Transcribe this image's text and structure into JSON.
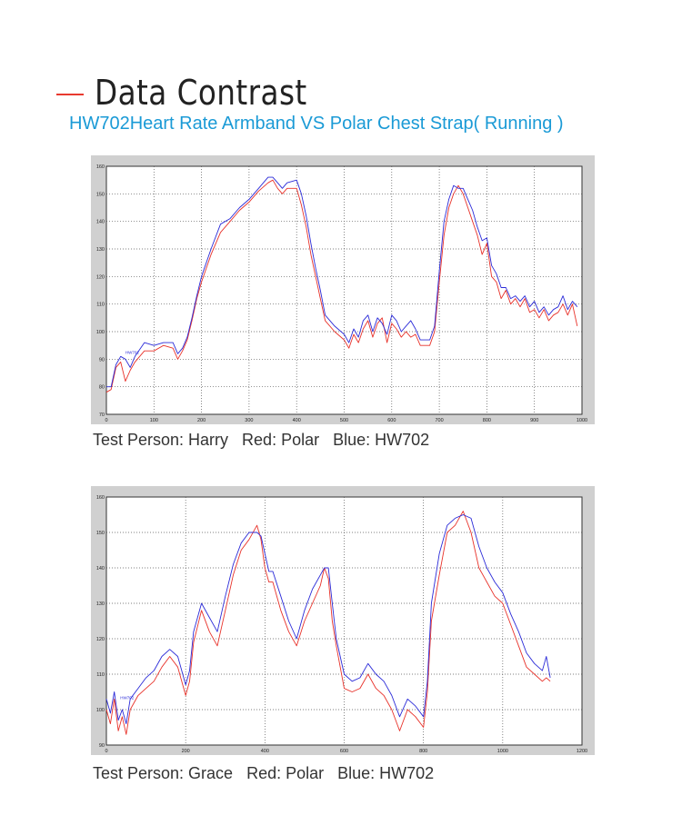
{
  "heading": {
    "title": "Data Contrast"
  },
  "subtitle": "HW702Heart Rate Armband VS Polar Chest Strap( Running )",
  "captions": {
    "chart1": "Test Person: Harry   Red: Polar   Blue: HW702",
    "chart2": "Test Person: Grace   Red: Polar   Blue: HW702"
  },
  "colors": {
    "polar": "#e8322a",
    "hw702": "#2b2bd8",
    "accent": "#e8392f",
    "subtitle": "#1a9ad6"
  },
  "chart_data": [
    {
      "type": "line",
      "xlim": [
        0,
        1000
      ],
      "ylim": [
        70,
        160
      ],
      "xticks": [
        0,
        100,
        200,
        300,
        400,
        500,
        600,
        700,
        800,
        900,
        1000
      ],
      "yticks": [
        70,
        80,
        90,
        100,
        110,
        120,
        130,
        140,
        150,
        160
      ],
      "grid": true,
      "legend_text": "HW702",
      "series": [
        {
          "color": "#e8322a",
          "x": [
            0,
            10,
            20,
            30,
            40,
            50,
            60,
            80,
            100,
            120,
            140,
            150,
            160,
            170,
            180,
            190,
            200,
            220,
            240,
            260,
            280,
            300,
            320,
            340,
            350,
            360,
            370,
            380,
            400,
            410,
            420,
            430,
            440,
            450,
            460,
            480,
            500,
            510,
            520,
            530,
            540,
            550,
            560,
            570,
            580,
            590,
            600,
            610,
            620,
            630,
            640,
            650,
            660,
            680,
            690,
            700,
            710,
            720,
            730,
            740,
            750,
            760,
            770,
            780,
            790,
            800,
            810,
            820,
            830,
            840,
            850,
            860,
            870,
            880,
            890,
            900,
            910,
            920,
            930,
            940,
            950,
            960,
            970,
            980,
            990
          ],
          "y": [
            78,
            79,
            87,
            89,
            82,
            86,
            89,
            93,
            93,
            95,
            94,
            90,
            93,
            97,
            104,
            112,
            118,
            128,
            136,
            140,
            144,
            147,
            151,
            154,
            155,
            152,
            150,
            152,
            152,
            146,
            138,
            128,
            120,
            112,
            104,
            100,
            97,
            94,
            99,
            96,
            101,
            104,
            98,
            103,
            105,
            96,
            103,
            101,
            98,
            100,
            98,
            99,
            95,
            95,
            100,
            118,
            135,
            145,
            150,
            153,
            150,
            145,
            140,
            135,
            128,
            132,
            120,
            118,
            112,
            115,
            110,
            112,
            109,
            112,
            107,
            108,
            105,
            108,
            104,
            106,
            107,
            110,
            106,
            110,
            102
          ]
        },
        {
          "color": "#2b2bd8",
          "x": [
            0,
            10,
            20,
            30,
            40,
            50,
            60,
            80,
            100,
            120,
            140,
            150,
            160,
            170,
            180,
            190,
            200,
            220,
            240,
            260,
            280,
            300,
            320,
            340,
            350,
            360,
            370,
            380,
            400,
            410,
            420,
            430,
            440,
            450,
            460,
            480,
            500,
            510,
            520,
            530,
            540,
            550,
            560,
            570,
            580,
            590,
            600,
            610,
            620,
            630,
            640,
            650,
            660,
            680,
            690,
            700,
            710,
            720,
            730,
            740,
            750,
            760,
            770,
            780,
            790,
            800,
            810,
            820,
            830,
            840,
            850,
            860,
            870,
            880,
            890,
            900,
            910,
            920,
            930,
            940,
            950,
            960,
            970,
            980,
            990
          ],
          "y": [
            80,
            80,
            88,
            91,
            90,
            87,
            91,
            96,
            95,
            96,
            96,
            92,
            94,
            98,
            105,
            113,
            120,
            130,
            139,
            141,
            145,
            148,
            152,
            156,
            156,
            154,
            152,
            154,
            155,
            150,
            142,
            132,
            123,
            115,
            106,
            102,
            99,
            96,
            101,
            98,
            104,
            106,
            100,
            105,
            103,
            99,
            106,
            104,
            100,
            102,
            104,
            101,
            97,
            97,
            102,
            122,
            140,
            148,
            153,
            152,
            152,
            148,
            144,
            138,
            133,
            134,
            124,
            121,
            116,
            116,
            112,
            113,
            111,
            113,
            109,
            111,
            107,
            109,
            106,
            108,
            109,
            113,
            108,
            111,
            109
          ]
        }
      ]
    },
    {
      "type": "line",
      "xlim": [
        0,
        1200
      ],
      "ylim": [
        90,
        160
      ],
      "xticks": [
        0,
        200,
        400,
        600,
        800,
        1000,
        1200
      ],
      "yticks": [
        90,
        100,
        110,
        120,
        130,
        140,
        150,
        160
      ],
      "grid": true,
      "legend_text": "HW702",
      "series": [
        {
          "color": "#e8322a",
          "x": [
            0,
            10,
            20,
            30,
            40,
            50,
            60,
            80,
            100,
            120,
            140,
            160,
            180,
            200,
            210,
            220,
            240,
            260,
            280,
            300,
            320,
            340,
            360,
            380,
            390,
            400,
            410,
            420,
            440,
            460,
            480,
            500,
            520,
            540,
            550,
            560,
            570,
            580,
            600,
            620,
            640,
            660,
            680,
            700,
            720,
            740,
            760,
            780,
            800,
            810,
            820,
            840,
            860,
            880,
            900,
            920,
            940,
            960,
            980,
            1000,
            1020,
            1040,
            1060,
            1080,
            1100,
            1110,
            1120
          ],
          "y": [
            100,
            96,
            103,
            94,
            98,
            93,
            100,
            104,
            106,
            108,
            112,
            115,
            112,
            104,
            108,
            119,
            128,
            122,
            118,
            128,
            138,
            145,
            148,
            152,
            148,
            140,
            136,
            136,
            128,
            122,
            118,
            125,
            130,
            135,
            140,
            137,
            125,
            118,
            106,
            105,
            106,
            110,
            106,
            104,
            100,
            94,
            100,
            98,
            95,
            105,
            125,
            138,
            150,
            152,
            156,
            150,
            140,
            136,
            132,
            130,
            124,
            118,
            112,
            110,
            108,
            109,
            108
          ]
        },
        {
          "color": "#2b2bd8",
          "x": [
            0,
            10,
            20,
            30,
            40,
            50,
            60,
            80,
            100,
            120,
            140,
            160,
            180,
            200,
            210,
            220,
            240,
            260,
            280,
            300,
            320,
            340,
            360,
            380,
            390,
            400,
            410,
            420,
            440,
            460,
            480,
            500,
            520,
            540,
            550,
            560,
            570,
            580,
            600,
            620,
            640,
            660,
            680,
            700,
            720,
            740,
            760,
            780,
            800,
            810,
            820,
            840,
            860,
            880,
            900,
            920,
            940,
            960,
            980,
            1000,
            1020,
            1040,
            1060,
            1080,
            1100,
            1110,
            1120
          ],
          "y": [
            103,
            99,
            105,
            97,
            100,
            96,
            103,
            106,
            109,
            111,
            115,
            117,
            115,
            107,
            111,
            122,
            130,
            126,
            122,
            132,
            141,
            147,
            150,
            150,
            149,
            144,
            139,
            139,
            132,
            125,
            120,
            128,
            134,
            138,
            140,
            140,
            130,
            120,
            110,
            108,
            109,
            113,
            110,
            108,
            104,
            98,
            103,
            101,
            98,
            108,
            130,
            144,
            152,
            154,
            155,
            154,
            146,
            140,
            136,
            133,
            127,
            122,
            116,
            113,
            111,
            115,
            109
          ]
        }
      ]
    }
  ]
}
